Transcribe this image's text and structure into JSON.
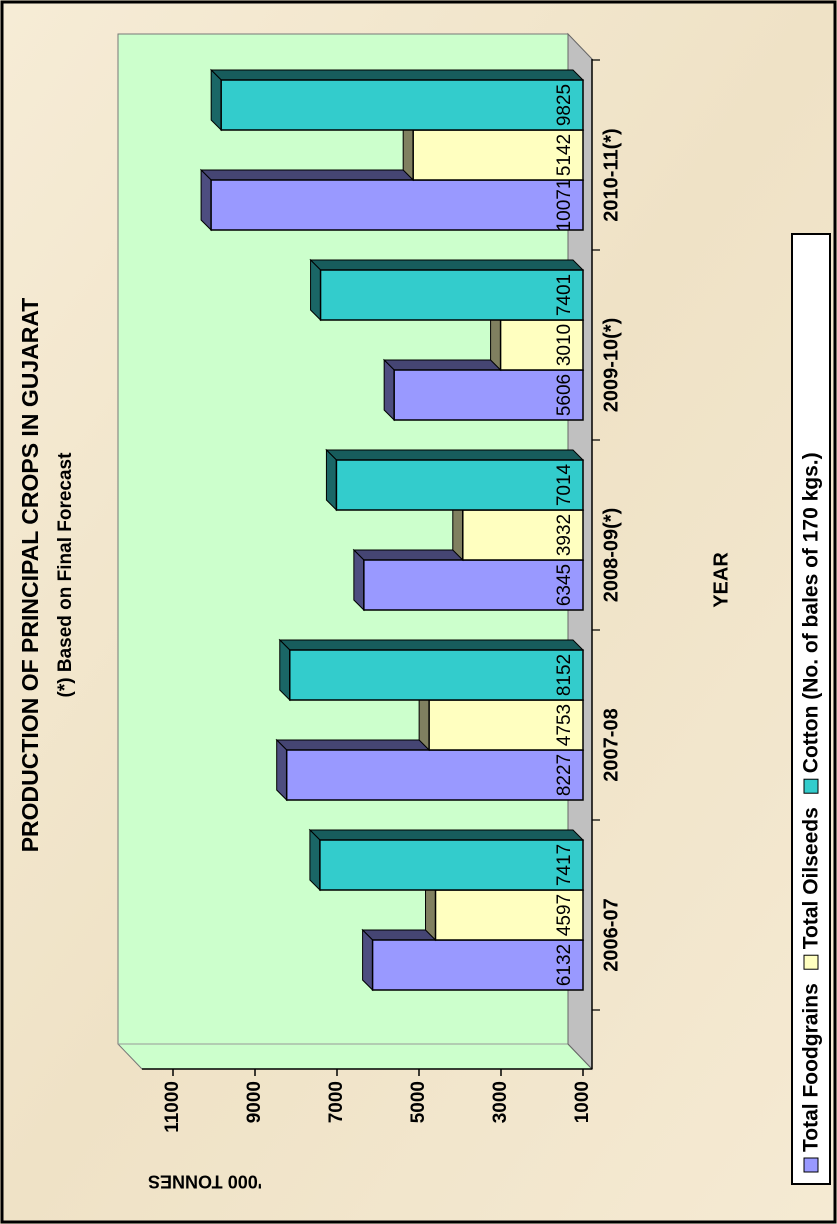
{
  "chart_data": {
    "type": "bar",
    "title": "PRODUCTION OF PRINCIPAL  CROPS IN GUJARAT",
    "subtitle": "(*) Based on Final Forecast",
    "x_label": "YEAR",
    "y_label": "'000 TONNES",
    "categories": [
      "2006-07",
      "2007-08",
      "2008-09(*)",
      "2009-10(*)",
      "2010-11(*)"
    ],
    "series": [
      {
        "name": "Total Foodgrains",
        "color": "#9999ff",
        "values": [
          6132,
          8227,
          6345,
          5606,
          10071
        ]
      },
      {
        "name": "Total Oilseeds",
        "color": "#ffffc0",
        "values": [
          4597,
          4753,
          3932,
          3010,
          5142
        ]
      },
      {
        "name": "Cotton (No. of bales of 170 kgs.)",
        "color": "#33cccc",
        "values": [
          7417,
          8152,
          7014,
          7401,
          9825
        ]
      }
    ],
    "ylim": [
      1000,
      12000
    ],
    "yticks": [
      1000,
      3000,
      5000,
      7000,
      9000,
      11000
    ],
    "legend": "bottom"
  }
}
